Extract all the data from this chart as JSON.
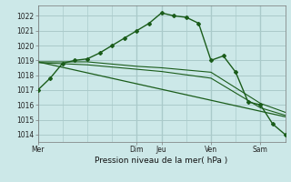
{
  "bg_color": "#cce8e8",
  "grid_color": "#aacaca",
  "line_color": "#1a5c1a",
  "title": "Pression niveau de la mer( hPa )",
  "ylim": [
    1013.5,
    1022.7
  ],
  "yticks": [
    1014,
    1015,
    1016,
    1017,
    1018,
    1019,
    1020,
    1021,
    1022
  ],
  "day_labels": [
    "Mer",
    "Dim",
    "Jeu",
    "Ven",
    "Sam"
  ],
  "day_positions": [
    0,
    16,
    20,
    28,
    36
  ],
  "xlim": [
    0,
    40
  ],
  "vlines": [
    0,
    4,
    8,
    12,
    16,
    20,
    24,
    28,
    32,
    36,
    40
  ],
  "series1_x": [
    0,
    2,
    4,
    6,
    8,
    10,
    12,
    14,
    16,
    18,
    20,
    22,
    24,
    26,
    28,
    30,
    32,
    34,
    36,
    38,
    40
  ],
  "series1_y": [
    1017.0,
    1017.8,
    1018.8,
    1019.0,
    1019.1,
    1019.5,
    1020.0,
    1020.5,
    1021.0,
    1021.5,
    1022.2,
    1022.0,
    1021.9,
    1021.5,
    1019.0,
    1019.3,
    1018.2,
    1016.2,
    1016.0,
    1014.7,
    1014.0
  ],
  "series2_x": [
    0,
    8,
    16,
    20,
    28,
    36,
    40
  ],
  "series2_y": [
    1018.9,
    1018.9,
    1018.6,
    1018.5,
    1018.2,
    1016.1,
    1015.5
  ],
  "series3_x": [
    0,
    8,
    16,
    20,
    28,
    36,
    40
  ],
  "series3_y": [
    1018.85,
    1018.7,
    1018.4,
    1018.25,
    1017.8,
    1015.8,
    1015.3
  ],
  "series4_x": [
    0,
    40
  ],
  "series4_y": [
    1018.9,
    1015.2
  ]
}
